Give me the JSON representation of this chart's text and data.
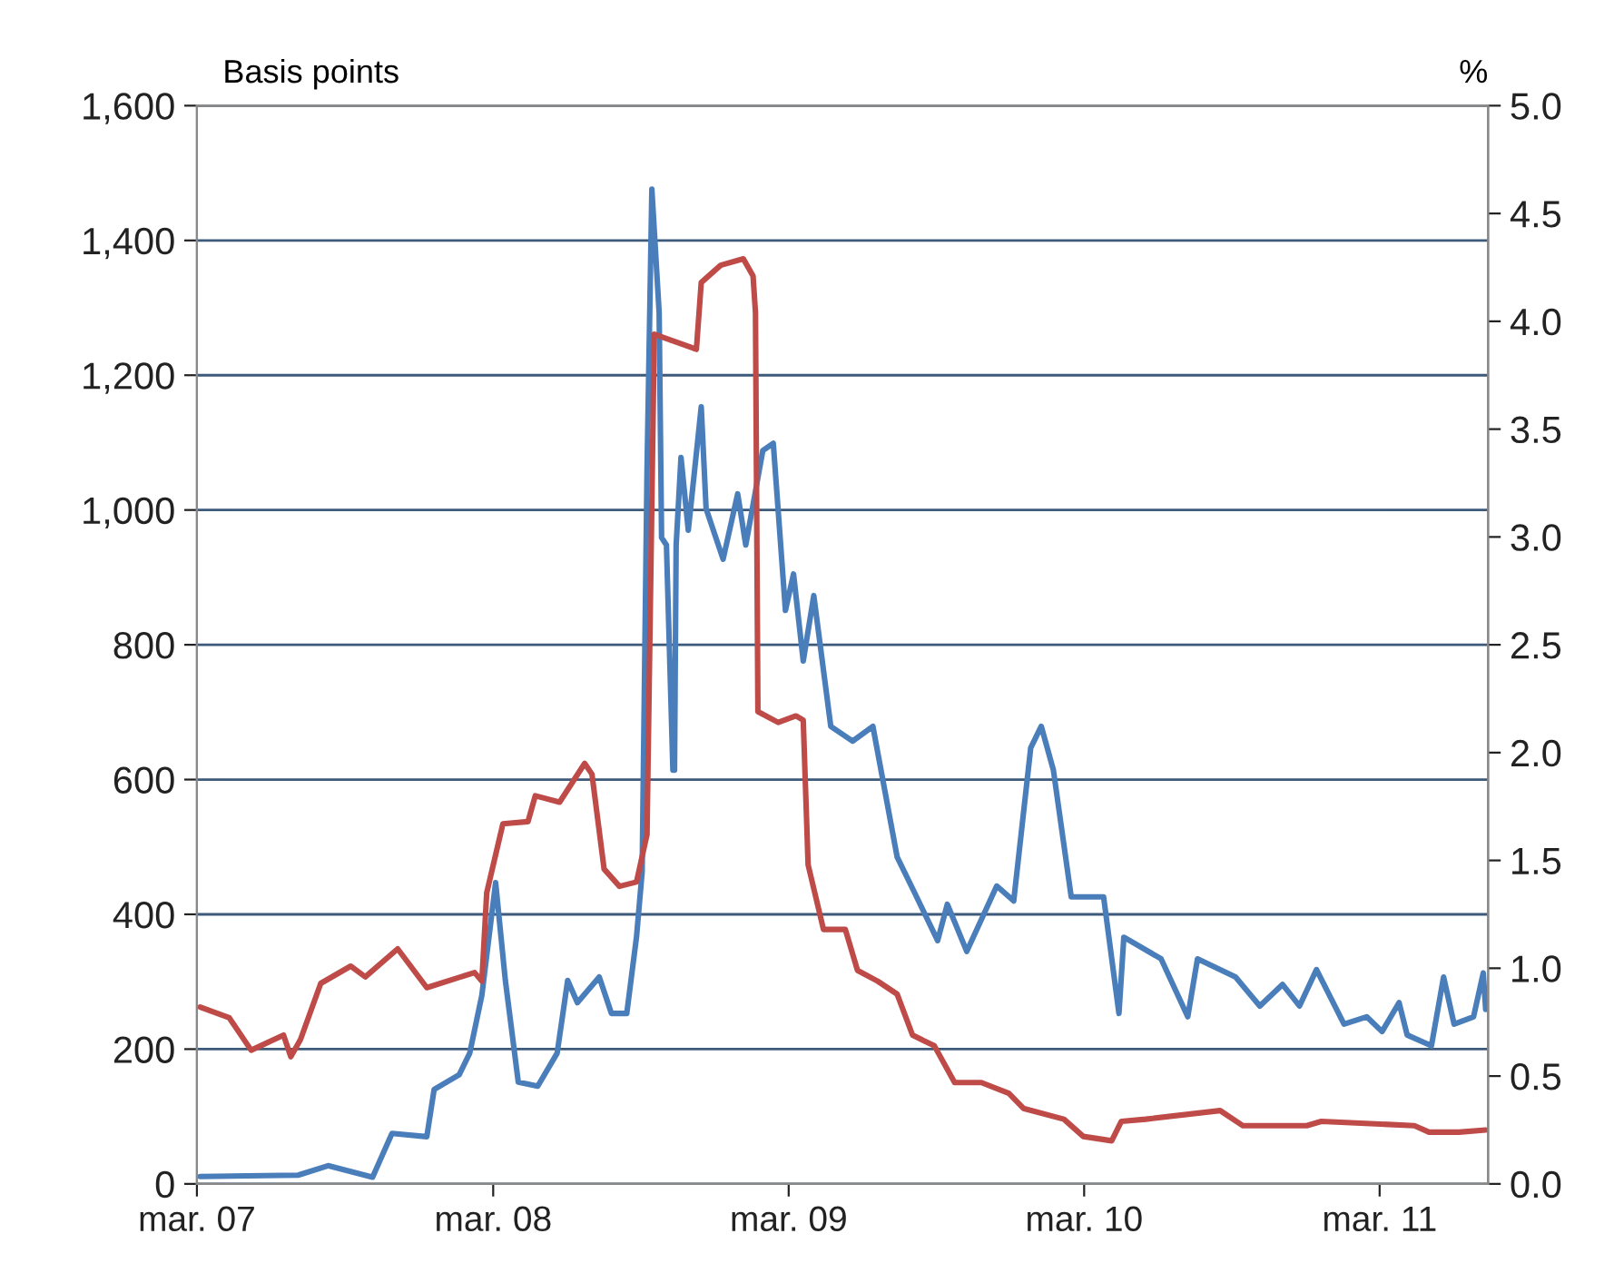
{
  "chart_data": {
    "type": "line",
    "ylabel": "Basis points",
    "y2label": "%",
    "xlim": [
      "2007-03-01",
      "2011-07-13"
    ],
    "xticks": [
      {
        "value": "2007-03-01",
        "label": "mar. 07"
      },
      {
        "value": "2008-03-01",
        "label": "mar. 08"
      },
      {
        "value": "2009-03-01",
        "label": "mar. 09"
      },
      {
        "value": "2010-03-01",
        "label": "mar. 10"
      },
      {
        "value": "2011-03-01",
        "label": "mar. 11"
      }
    ],
    "ylim": [
      0,
      1600
    ],
    "yticks": [
      0,
      200,
      400,
      600,
      800,
      {
        "value": 1000,
        "label": "1,000"
      },
      {
        "value": 1200,
        "label": "1,200"
      },
      {
        "value": 1400,
        "label": "1,400"
      },
      {
        "value": 1600,
        "label": "1,600"
      }
    ],
    "y2lim": [
      0,
      5
    ],
    "y2ticks": [
      {
        "value": 0,
        "label": "0.0"
      },
      {
        "value": 0.5,
        "label": "0.5"
      },
      {
        "value": 1,
        "label": "1.0"
      },
      {
        "value": 1.5,
        "label": "1.5"
      },
      {
        "value": 2,
        "label": "2.0"
      },
      {
        "value": 2.5,
        "label": "2.5"
      },
      {
        "value": 3,
        "label": "3.0"
      },
      {
        "value": 3.5,
        "label": "3.5"
      },
      {
        "value": 4,
        "label": "4.0"
      },
      {
        "value": 4.5,
        "label": "4.5"
      },
      {
        "value": 5,
        "label": "5.0"
      }
    ],
    "grid": "y",
    "legend": false,
    "marker": "none",
    "line_style": "solid",
    "series": [
      {
        "color": "#4a7ebb",
        "axis": "y",
        "x": [
          "2007-03-05",
          "2007-07-04",
          "2007-08-10",
          "2007-10-04",
          "2007-10-28",
          "2007-12-10",
          "2007-12-19",
          "2008-01-19",
          "2008-02-01",
          "2008-02-16",
          "2008-03-04",
          "2008-03-16",
          "2008-04-01",
          "2008-04-25",
          "2008-05-19",
          "2008-06-01",
          "2008-06-13",
          "2008-07-10",
          "2008-07-25",
          "2008-08-13",
          "2008-08-25",
          "2008-09-01",
          "2008-09-07",
          "2008-09-13",
          "2008-09-22",
          "2008-09-25",
          "2008-10-01",
          "2008-10-09",
          "2008-10-11",
          "2008-10-13",
          "2008-10-19",
          "2008-10-28",
          "2008-11-13",
          "2008-11-19",
          "2008-12-10",
          "2008-12-28",
          "2009-01-07",
          "2009-01-28",
          "2009-02-10",
          "2009-02-25",
          "2009-03-07",
          "2009-03-19",
          "2009-04-01",
          "2009-04-22",
          "2009-05-19",
          "2009-06-13",
          "2009-07-13",
          "2009-08-04",
          "2009-09-01",
          "2009-09-13",
          "2009-10-07",
          "2009-11-13",
          "2009-12-04",
          "2009-12-25",
          "2010-01-07",
          "2010-01-22",
          "2010-02-13",
          "2010-03-25",
          "2010-04-13",
          "2010-04-19",
          "2010-06-04",
          "2010-07-07",
          "2010-07-19",
          "2010-09-04",
          "2010-10-04",
          "2010-11-01",
          "2010-11-22",
          "2010-12-13",
          "2011-01-16",
          "2011-02-13",
          "2011-03-04",
          "2011-03-25",
          "2011-04-04",
          "2011-05-04",
          "2011-05-19",
          "2011-06-01",
          "2011-06-25",
          "2011-07-07",
          "2011-07-10"
        ],
        "values": [
          11,
          13,
          27,
          10,
          75,
          70,
          140,
          162,
          194,
          280,
          447,
          302,
          151,
          145,
          194,
          302,
          269,
          307,
          253,
          253,
          366,
          463,
          1056,
          1476,
          1293,
          959,
          948,
          614,
          614,
          948,
          1078,
          970,
          1153,
          1002,
          927,
          1024,
          948,
          1088,
          1099,
          851,
          905,
          776,
          873,
          679,
          657,
          679,
          485,
          431,
          361,
          415,
          345,
          442,
          420,
          647,
          679,
          614,
          426,
          426,
          253,
          366,
          334,
          248,
          334,
          307,
          264,
          296,
          264,
          318,
          237,
          248,
          226,
          269,
          221,
          205,
          307,
          237,
          248,
          313,
          259
        ]
      },
      {
        "color": "#be4b48",
        "axis": "y2",
        "x": [
          "2007-03-05",
          "2007-04-10",
          "2007-05-07",
          "2007-06-16",
          "2007-06-25",
          "2007-07-07",
          "2007-08-01",
          "2007-09-07",
          "2007-09-25",
          "2007-11-04",
          "2007-12-10",
          "2008-02-07",
          "2008-02-16",
          "2008-02-22",
          "2008-03-13",
          "2008-04-13",
          "2008-04-22",
          "2008-05-22",
          "2008-06-22",
          "2008-07-01",
          "2008-07-16",
          "2008-08-04",
          "2008-08-25",
          "2008-09-07",
          "2008-09-16",
          "2008-10-01",
          "2008-11-07",
          "2008-11-13",
          "2008-12-07",
          "2009-01-04",
          "2009-01-16",
          "2009-01-19",
          "2009-01-22",
          "2009-02-16",
          "2009-03-10",
          "2009-03-19",
          "2009-03-25",
          "2009-04-13",
          "2009-05-10",
          "2009-05-25",
          "2009-06-19",
          "2009-07-13",
          "2009-08-01",
          "2009-08-28",
          "2009-09-22",
          "2009-10-25",
          "2009-11-28",
          "2009-12-16",
          "2010-02-04",
          "2010-02-28",
          "2010-04-04",
          "2010-04-16",
          "2010-05-16",
          "2010-08-16",
          "2010-09-13",
          "2010-12-01",
          "2010-12-19",
          "2011-04-13",
          "2011-05-01",
          "2011-06-07",
          "2011-07-10"
        ],
        "values": [
          0.82,
          0.77,
          0.62,
          0.69,
          0.59,
          0.67,
          0.93,
          1.01,
          0.96,
          1.09,
          0.91,
          0.98,
          0.94,
          1.35,
          1.67,
          1.68,
          1.8,
          1.77,
          1.95,
          1.9,
          1.46,
          1.38,
          1.4,
          1.62,
          3.94,
          3.92,
          3.87,
          4.18,
          4.26,
          4.29,
          4.21,
          4.04,
          2.19,
          2.14,
          2.17,
          2.15,
          1.48,
          1.18,
          1.18,
          0.99,
          0.94,
          0.88,
          0.69,
          0.64,
          0.47,
          0.47,
          0.42,
          0.35,
          0.3,
          0.22,
          0.2,
          0.29,
          0.3,
          0.34,
          0.27,
          0.27,
          0.29,
          0.27,
          0.24,
          0.24,
          0.25
        ]
      }
    ]
  }
}
